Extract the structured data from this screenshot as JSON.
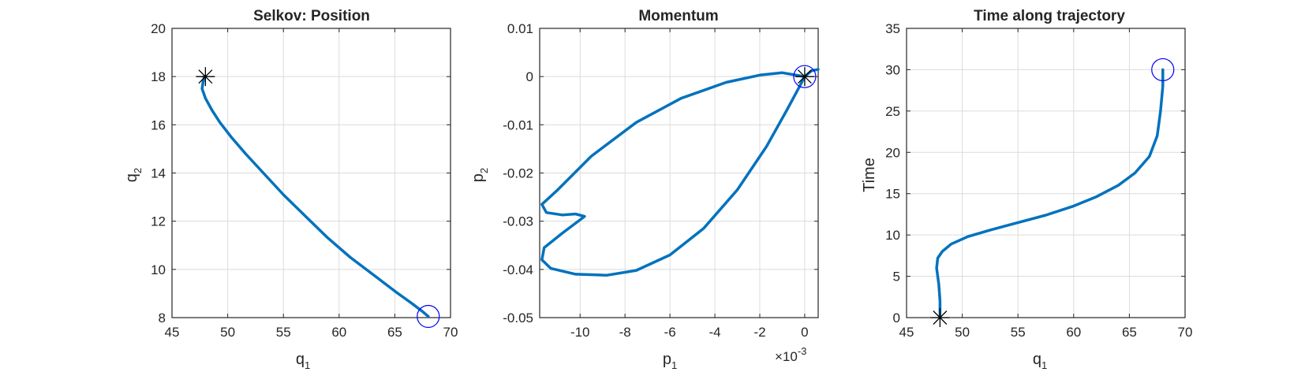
{
  "colors": {
    "line": "#0072BD",
    "grid": "#dcdcdc",
    "axis": "#262626",
    "start_marker": "#000000",
    "end_marker": "#0000ff"
  },
  "chart_data": [
    {
      "type": "line",
      "title": "Selkov: Position",
      "xlabel": "q",
      "xlabel_sub": "1",
      "ylabel": "q",
      "ylabel_sub": "2",
      "xlim": [
        45,
        70
      ],
      "ylim": [
        8,
        20
      ],
      "xticks": [
        45,
        50,
        55,
        60,
        65,
        70
      ],
      "yticks": [
        8,
        10,
        12,
        14,
        16,
        18,
        20
      ],
      "xtick_labels": [
        "45",
        "50",
        "55",
        "60",
        "65",
        "70"
      ],
      "ytick_labels": [
        "8",
        "10",
        "12",
        "14",
        "16",
        "18",
        "20"
      ],
      "grid": true,
      "series": [
        {
          "x": [
            47.9,
            47.8,
            47.7,
            48.0,
            48.6,
            49.3,
            50.3,
            51.6,
            53.2,
            55.0,
            57.0,
            59.0,
            61.0,
            63.0,
            65.0,
            66.5,
            67.5,
            68.0
          ],
          "y": [
            18.0,
            17.8,
            17.5,
            17.1,
            16.6,
            16.1,
            15.5,
            14.8,
            14.0,
            13.1,
            12.2,
            11.3,
            10.5,
            9.8,
            9.1,
            8.6,
            8.25,
            8.05
          ]
        }
      ],
      "markers": {
        "start": {
          "x": 48,
          "y": 18
        },
        "end": {
          "x": 68,
          "y": 8.05
        }
      }
    },
    {
      "type": "line",
      "title": "Momentum",
      "xlabel": "p",
      "xlabel_sub": "1",
      "ylabel": "p",
      "ylabel_sub": "2",
      "x_multiplier": "×10",
      "x_multiplier_exp": "-3",
      "xlim": [
        -0.0118,
        0.0006
      ],
      "ylim": [
        -0.05,
        0.01
      ],
      "xticks": [
        -0.01,
        -0.008,
        -0.006,
        -0.004,
        -0.002,
        0
      ],
      "yticks": [
        -0.05,
        -0.04,
        -0.03,
        -0.02,
        -0.01,
        0,
        0.01
      ],
      "xtick_labels": [
        "-10",
        "-8",
        "-6",
        "-4",
        "-2",
        "0"
      ],
      "ytick_labels": [
        "-0.05",
        "-0.04",
        "-0.03",
        "-0.02",
        "-0.01",
        "0",
        "0.01"
      ],
      "grid": true,
      "series": [
        {
          "x": [
            0.0,
            -0.001,
            -0.002,
            -0.0035,
            -0.0055,
            -0.0075,
            -0.0095,
            -0.011,
            -0.0117,
            -0.0115,
            -0.0108,
            -0.0102,
            -0.0098,
            -0.0108,
            -0.0116,
            -0.0117,
            -0.0113,
            -0.0102,
            -0.0088,
            -0.0075,
            -0.006,
            -0.0045,
            -0.003,
            -0.0017,
            -0.0008,
            -0.0002,
            0.0,
            0.0003,
            0.0006
          ],
          "y": [
            0.0,
            0.0008,
            0.0003,
            -0.0012,
            -0.0045,
            -0.0095,
            -0.0165,
            -0.0235,
            -0.0265,
            -0.0282,
            -0.0287,
            -0.0285,
            -0.029,
            -0.0325,
            -0.0355,
            -0.038,
            -0.0398,
            -0.041,
            -0.0412,
            -0.0402,
            -0.037,
            -0.0315,
            -0.0235,
            -0.0145,
            -0.007,
            -0.0018,
            0.0,
            0.0012,
            0.0015
          ]
        }
      ],
      "markers": {
        "start": {
          "x": 0,
          "y": 0
        },
        "end": {
          "x": 0,
          "y": 0
        }
      }
    },
    {
      "type": "line",
      "title": "Time along trajectory",
      "xlabel": "q",
      "xlabel_sub": "1",
      "ylabel": "Time",
      "ylabel_sub": "",
      "xlim": [
        45,
        70
      ],
      "ylim": [
        0,
        35
      ],
      "xticks": [
        45,
        50,
        55,
        60,
        65,
        70
      ],
      "yticks": [
        0,
        5,
        10,
        15,
        20,
        25,
        30,
        35
      ],
      "xtick_labels": [
        "45",
        "50",
        "55",
        "60",
        "65",
        "70"
      ],
      "ytick_labels": [
        "0",
        "5",
        "10",
        "15",
        "20",
        "25",
        "30",
        "35"
      ],
      "grid": true,
      "series": [
        {
          "x": [
            48.0,
            48.0,
            47.9,
            47.7,
            47.8,
            48.2,
            49.0,
            50.5,
            52.5,
            55.0,
            57.5,
            60.0,
            62.0,
            64.0,
            65.5,
            66.8,
            67.5,
            67.8,
            68.0,
            68.0
          ],
          "y": [
            0,
            2.0,
            4.0,
            6.0,
            7.2,
            8.0,
            8.9,
            9.8,
            10.6,
            11.5,
            12.4,
            13.5,
            14.6,
            16.0,
            17.5,
            19.5,
            22.0,
            25.0,
            28.0,
            30.0
          ]
        }
      ],
      "markers": {
        "start": {
          "x": 48,
          "y": 0
        },
        "end": {
          "x": 68,
          "y": 30
        }
      }
    }
  ]
}
